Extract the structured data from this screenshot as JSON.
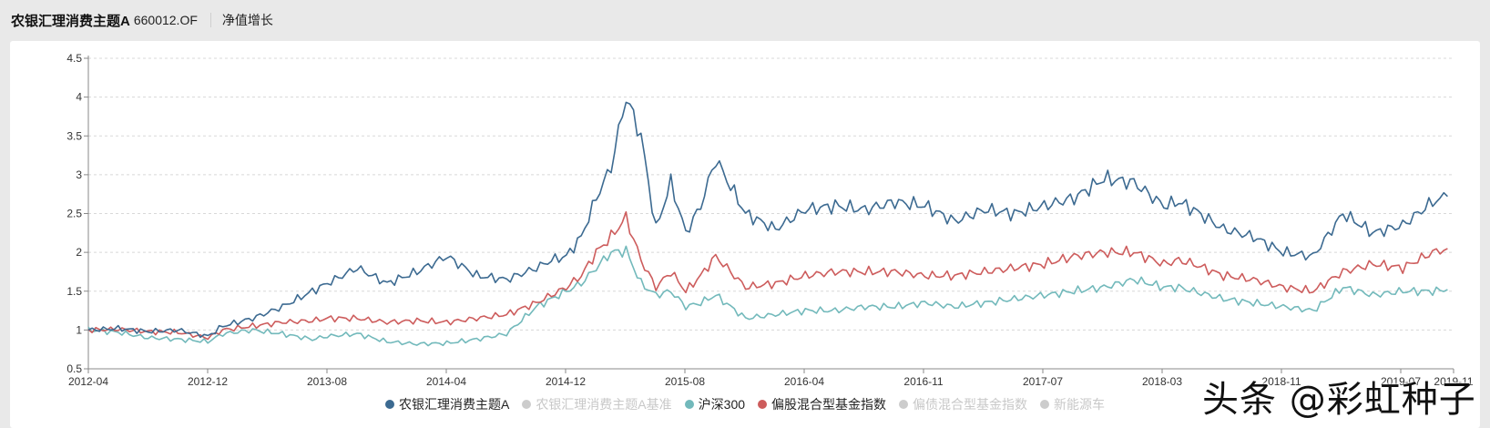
{
  "header": {
    "title": "农银汇理消费主题A",
    "code": "660012.OF",
    "tab": "净值增长"
  },
  "watermark": "头条 @彩虹种子",
  "colors": {
    "fund": "#3c6a91",
    "benchmark": "#cccccc",
    "hs300": "#72b9bb",
    "equity_index": "#cd5c5c",
    "bond_index": "#cccccc",
    "nev": "#cccccc"
  },
  "legend": [
    {
      "label": "农银汇理消费主题A",
      "color": "#3c6a91",
      "active": true
    },
    {
      "label": "农银汇理消费主题A基准",
      "color": "#cccccc",
      "active": false
    },
    {
      "label": "沪深300",
      "color": "#72b9bb",
      "active": true
    },
    {
      "label": "偏股混合型基金指数",
      "color": "#cd5c5c",
      "active": true
    },
    {
      "label": "偏债混合型基金指数",
      "color": "#cccccc",
      "active": false
    },
    {
      "label": "新能源车",
      "color": "#cccccc",
      "active": false
    }
  ],
  "chart_data": {
    "type": "line",
    "title": "净值增长",
    "xlabel": "",
    "ylabel": "",
    "ylim": [
      0.5,
      4.5
    ],
    "yticks": [
      "0.5",
      "1",
      "1.5",
      "2",
      "2.5",
      "3",
      "3.5",
      "4",
      "4.5"
    ],
    "xticks": [
      "2012-04",
      "2012-12",
      "2013-08",
      "2014-04",
      "2014-12",
      "2015-08",
      "2016-04",
      "2016-11",
      "2017-07",
      "2018-03",
      "2018-11",
      "2019-07",
      "2019-11"
    ],
    "grid": true,
    "legend_position": "bottom",
    "x_months": [
      0,
      2,
      4,
      6,
      8,
      9,
      11,
      13,
      15,
      16,
      18,
      20,
      22,
      24,
      26,
      28,
      30,
      31,
      32,
      33,
      34,
      35,
      36,
      37,
      38,
      39,
      40,
      41,
      42,
      44,
      46,
      48,
      50,
      52,
      54,
      56,
      58,
      60,
      62,
      64,
      66,
      68,
      70,
      72,
      73,
      74,
      76,
      78,
      80,
      82,
      84,
      86,
      88,
      90,
      91
    ],
    "series": [
      {
        "name": "农银汇理消费主题A",
        "values": [
          1.0,
          1.02,
          0.98,
          1.0,
          0.92,
          1.05,
          1.15,
          1.3,
          1.5,
          1.6,
          1.8,
          1.6,
          1.75,
          1.95,
          1.7,
          1.65,
          1.8,
          1.9,
          1.95,
          2.2,
          2.7,
          3.1,
          4.0,
          3.5,
          2.3,
          2.9,
          2.25,
          2.6,
          3.2,
          2.5,
          2.3,
          2.55,
          2.6,
          2.55,
          2.65,
          2.6,
          2.4,
          2.55,
          2.5,
          2.6,
          2.7,
          2.95,
          2.9,
          2.6,
          2.65,
          2.55,
          2.3,
          2.2,
          2.0,
          1.95,
          2.5,
          2.25,
          2.35,
          2.65,
          2.72
        ]
      },
      {
        "name": "沪深300",
        "values": [
          1.0,
          0.97,
          0.9,
          0.88,
          0.85,
          0.95,
          1.0,
          0.95,
          0.88,
          0.92,
          0.95,
          0.85,
          0.82,
          0.83,
          0.88,
          0.95,
          1.3,
          1.4,
          1.5,
          1.6,
          1.8,
          2.0,
          2.02,
          1.6,
          1.45,
          1.5,
          1.3,
          1.35,
          1.45,
          1.15,
          1.2,
          1.25,
          1.25,
          1.3,
          1.3,
          1.35,
          1.3,
          1.35,
          1.4,
          1.45,
          1.5,
          1.55,
          1.65,
          1.55,
          1.55,
          1.5,
          1.4,
          1.35,
          1.3,
          1.25,
          1.55,
          1.45,
          1.5,
          1.5,
          1.52
        ]
      },
      {
        "name": "偏股混合型基金指数",
        "values": [
          1.0,
          1.01,
          0.98,
          0.97,
          0.9,
          1.0,
          1.05,
          1.1,
          1.12,
          1.15,
          1.15,
          1.1,
          1.12,
          1.1,
          1.15,
          1.2,
          1.35,
          1.45,
          1.55,
          1.7,
          2.0,
          2.2,
          2.45,
          1.9,
          1.55,
          1.75,
          1.5,
          1.7,
          1.95,
          1.55,
          1.6,
          1.7,
          1.75,
          1.75,
          1.75,
          1.7,
          1.7,
          1.75,
          1.8,
          1.85,
          1.95,
          2.0,
          2.0,
          1.85,
          1.9,
          1.85,
          1.7,
          1.65,
          1.55,
          1.5,
          1.75,
          1.85,
          1.8,
          2.0,
          2.05
        ]
      }
    ]
  }
}
